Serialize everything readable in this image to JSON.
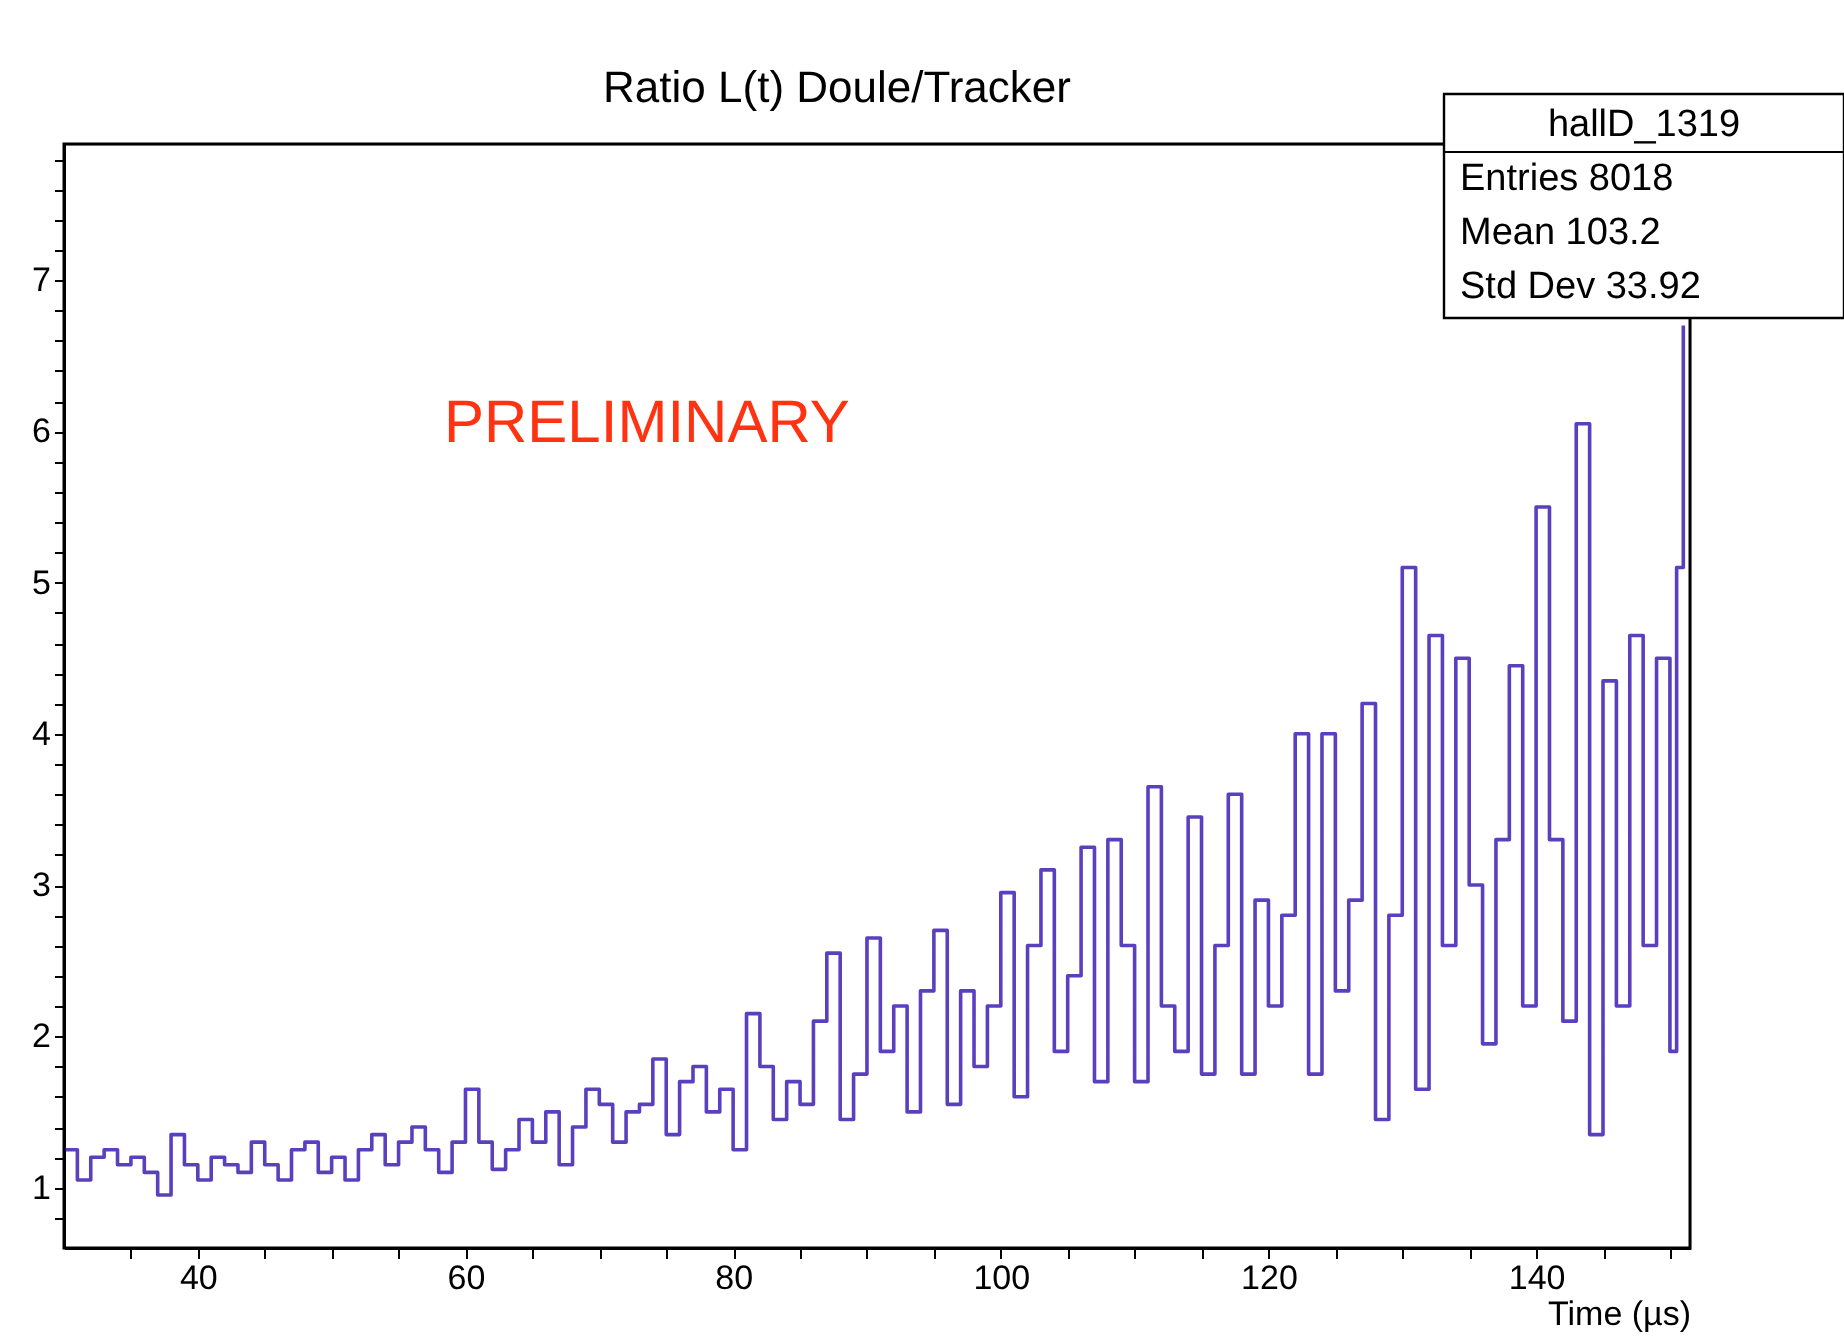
{
  "chart_data": {
    "type": "step",
    "title": "Ratio L(t) Doule/Tracker",
    "xlabel": "Time (µs)",
    "x": [
      30,
      31,
      32,
      33,
      34,
      35,
      36,
      37,
      38,
      39,
      40,
      41,
      42,
      43,
      44,
      45,
      46,
      47,
      48,
      49,
      50,
      51,
      52,
      53,
      54,
      55,
      56,
      57,
      58,
      59,
      60,
      61,
      62,
      63,
      64,
      65,
      66,
      67,
      68,
      69,
      70,
      71,
      72,
      73,
      74,
      75,
      76,
      77,
      78,
      79,
      80,
      81,
      82,
      83,
      84,
      85,
      86,
      87,
      88,
      89,
      90,
      91,
      92,
      93,
      94,
      95,
      96,
      97,
      98,
      99,
      100,
      101,
      102,
      103,
      104,
      105,
      106,
      107,
      108,
      109,
      110,
      111,
      112,
      113,
      114,
      115,
      116,
      117,
      118,
      119,
      120,
      121,
      122,
      123,
      124,
      125,
      126,
      127,
      128,
      129,
      130,
      131,
      132,
      133,
      134,
      135,
      136,
      137,
      138,
      139,
      140,
      141,
      142,
      143,
      144,
      145,
      146,
      147,
      148,
      149,
      150,
      150.5,
      151
    ],
    "series": [
      {
        "color": "#3d1fb3",
        "values": [
          1.25,
          1.05,
          1.2,
          1.25,
          1.15,
          1.2,
          1.1,
          0.95,
          1.35,
          1.15,
          1.05,
          1.2,
          1.15,
          1.1,
          1.3,
          1.15,
          1.05,
          1.25,
          1.3,
          1.1,
          1.2,
          1.05,
          1.25,
          1.35,
          1.15,
          1.3,
          1.4,
          1.25,
          1.1,
          1.3,
          1.65,
          1.3,
          1.12,
          1.25,
          1.45,
          1.3,
          1.5,
          1.15,
          1.4,
          1.65,
          1.55,
          1.3,
          1.5,
          1.55,
          1.85,
          1.35,
          1.7,
          1.8,
          1.5,
          1.65,
          1.25,
          2.15,
          1.8,
          1.45,
          1.7,
          1.55,
          2.1,
          2.55,
          1.45,
          1.75,
          2.65,
          1.9,
          2.2,
          1.5,
          2.3,
          2.7,
          1.55,
          2.3,
          1.8,
          2.2,
          2.95,
          1.6,
          2.6,
          3.1,
          1.9,
          2.4,
          3.25,
          1.7,
          3.3,
          2.6,
          1.7,
          3.65,
          2.2,
          1.9,
          3.45,
          1.75,
          2.6,
          3.6,
          1.75,
          2.9,
          2.2,
          2.8,
          4.0,
          1.75,
          4.0,
          2.3,
          2.9,
          4.2,
          1.45,
          2.8,
          5.1,
          1.65,
          4.65,
          2.6,
          4.5,
          3.0,
          1.95,
          3.3,
          4.45,
          2.2,
          5.5,
          3.3,
          2.1,
          6.05,
          1.35,
          4.35,
          2.2,
          4.65,
          2.6,
          4.5,
          1.9,
          5.1,
          6.7
        ]
      }
    ],
    "xlim": [
      30,
      151.5
    ],
    "xticks": [
      {
        "value": 35,
        "label": null
      },
      40,
      {
        "value": 45,
        "label": null
      },
      {
        "value": 50,
        "label": null
      },
      {
        "value": 55,
        "label": null
      },
      60,
      {
        "value": 65,
        "label": null
      },
      {
        "value": 70,
        "label": null
      },
      {
        "value": 75,
        "label": null
      },
      80,
      {
        "value": 85,
        "label": null
      },
      {
        "value": 90,
        "label": null
      },
      {
        "value": 95,
        "label": null
      },
      100,
      {
        "value": 105,
        "label": null
      },
      {
        "value": 110,
        "label": null
      },
      {
        "value": 115,
        "label": null
      },
      120,
      {
        "value": 125,
        "label": null
      },
      {
        "value": 130,
        "label": null
      },
      {
        "value": 135,
        "label": null
      },
      140,
      {
        "value": 145,
        "label": null
      },
      {
        "value": 150,
        "label": null
      }
    ],
    "ylim": [
      0.6,
      7.9
    ],
    "yticks": [
      {
        "value": 0.8,
        "label": null
      },
      1,
      {
        "value": 1.2,
        "label": null
      },
      {
        "value": 1.4,
        "label": null
      },
      {
        "value": 1.6,
        "label": null
      },
      {
        "value": 1.8,
        "label": null
      },
      2,
      {
        "value": 2.2,
        "label": null
      },
      {
        "value": 2.4,
        "label": null
      },
      {
        "value": 2.6,
        "label": null
      },
      {
        "value": 2.8,
        "label": null
      },
      3,
      {
        "value": 3.2,
        "label": null
      },
      {
        "value": 3.4,
        "label": null
      },
      {
        "value": 3.6,
        "label": null
      },
      {
        "value": 3.8,
        "label": null
      },
      4,
      {
        "value": 4.2,
        "label": null
      },
      {
        "value": 4.4,
        "label": null
      },
      {
        "value": 4.6,
        "label": null
      },
      {
        "value": 4.8,
        "label": null
      },
      5,
      {
        "value": 5.2,
        "label": null
      },
      {
        "value": 5.4,
        "label": null
      },
      {
        "value": 5.6,
        "label": null
      },
      {
        "value": 5.8,
        "label": null
      },
      6,
      {
        "value": 6.2,
        "label": null
      },
      {
        "value": 6.4,
        "label": null
      },
      {
        "value": 6.6,
        "label": null
      },
      {
        "value": 6.8,
        "label": null
      },
      7,
      {
        "value": 7.2,
        "label": null
      },
      {
        "value": 7.4,
        "label": null
      },
      {
        "value": 7.6,
        "label": null
      },
      {
        "value": 7.8,
        "label": null
      }
    ],
    "grid": false,
    "annotations": [
      "PRELIMINARY",
      "hallD_1319",
      "Entries 8018",
      "Mean 103.2",
      "Std Dev 33.92"
    ]
  }
}
